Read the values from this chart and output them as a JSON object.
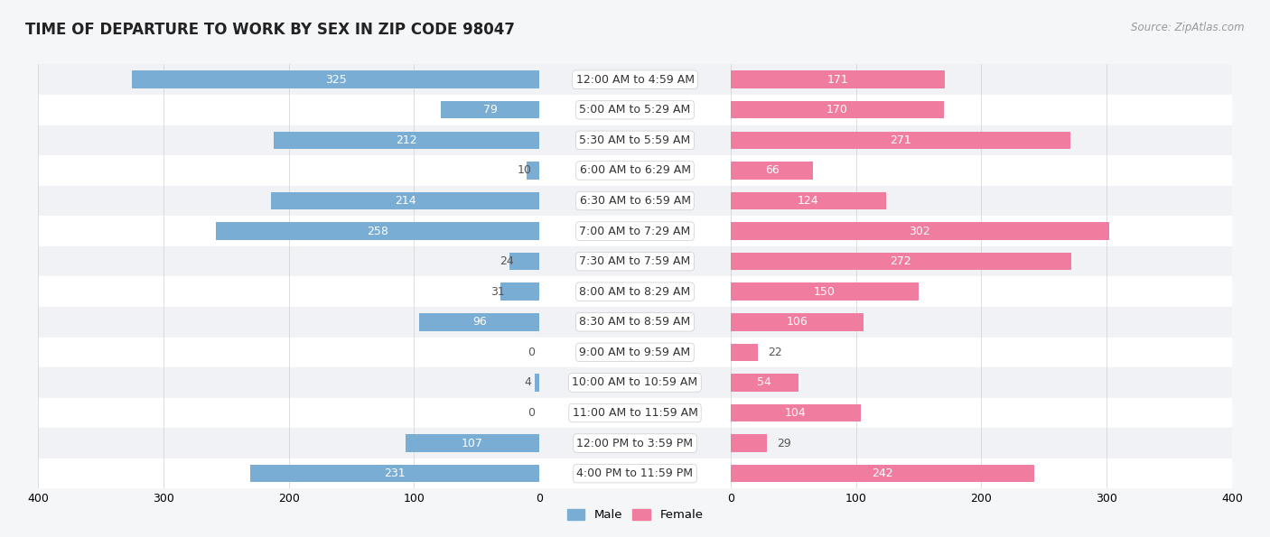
{
  "title": "TIME OF DEPARTURE TO WORK BY SEX IN ZIP CODE 98047",
  "source": "Source: ZipAtlas.com",
  "categories": [
    "12:00 AM to 4:59 AM",
    "5:00 AM to 5:29 AM",
    "5:30 AM to 5:59 AM",
    "6:00 AM to 6:29 AM",
    "6:30 AM to 6:59 AM",
    "7:00 AM to 7:29 AM",
    "7:30 AM to 7:59 AM",
    "8:00 AM to 8:29 AM",
    "8:30 AM to 8:59 AM",
    "9:00 AM to 9:59 AM",
    "10:00 AM to 10:59 AM",
    "11:00 AM to 11:59 AM",
    "12:00 PM to 3:59 PM",
    "4:00 PM to 11:59 PM"
  ],
  "male": [
    325,
    79,
    212,
    10,
    214,
    258,
    24,
    31,
    96,
    0,
    4,
    0,
    107,
    231
  ],
  "female": [
    171,
    170,
    271,
    66,
    124,
    302,
    272,
    150,
    106,
    22,
    54,
    104,
    29,
    242
  ],
  "male_color": "#7aadd4",
  "female_color": "#f07ca0",
  "male_color_large": "#6399c8",
  "female_color_large": "#e8608a",
  "bg_even": "#f0f2f5",
  "bg_odd": "#ffffff",
  "xlim": 400,
  "bar_height": 0.58,
  "category_fontsize": 9,
  "value_fontsize": 9,
  "title_fontsize": 12,
  "source_fontsize": 8.5,
  "legend_fontsize": 9.5,
  "inside_threshold_male": 50,
  "inside_threshold_female": 50
}
